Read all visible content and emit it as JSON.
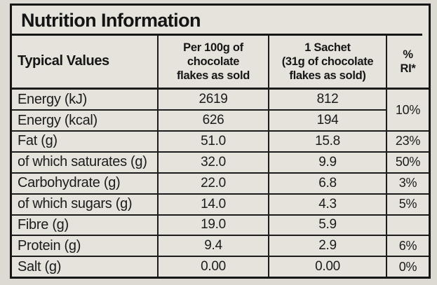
{
  "colors": {
    "paper_outer": "#dcdad3",
    "paper_inner": "#e5e3dc",
    "ink": "#161616",
    "grid_line": "#1c1c1c"
  },
  "panel": {
    "title": "Nutrition Information"
  },
  "table": {
    "header": {
      "typical_values": "Typical Values",
      "per100g_lines": [
        "Per 100g of",
        "chocolate",
        "flakes as sold"
      ],
      "sachet_lines": [
        "1 Sachet",
        "(31g of chocolate",
        "flakes as sold)"
      ],
      "ri_lines": [
        "%",
        "RI*"
      ]
    },
    "rows": [
      {
        "label": "Energy (kJ)",
        "per100": "2619",
        "sachet": "812",
        "ri": "10%"
      },
      {
        "label": "Energy (kcal)",
        "per100": "626",
        "sachet": "194"
      },
      {
        "label": "Fat (g)",
        "per100": "51.0",
        "sachet": "15.8",
        "ri": "23%"
      },
      {
        "label": "of which saturates (g)",
        "per100": "32.0",
        "sachet": "9.9",
        "ri": "50%"
      },
      {
        "label": "Carbohydrate (g)",
        "per100": "22.0",
        "sachet": "6.8",
        "ri": "3%"
      },
      {
        "label": "of which sugars (g)",
        "per100": "14.0",
        "sachet": "4.3",
        "ri": "5%"
      },
      {
        "label": "Fibre (g)",
        "per100": "19.0",
        "sachet": "5.9",
        "ri": ""
      },
      {
        "label": "Protein (g)",
        "per100": "9.4",
        "sachet": "2.9",
        "ri": "6%"
      },
      {
        "label": "Salt (g)",
        "per100": "0.00",
        "sachet": "0.00",
        "ri": "0%"
      }
    ]
  }
}
